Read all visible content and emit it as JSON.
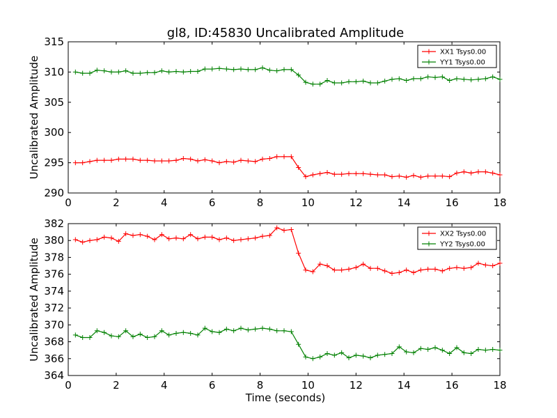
{
  "figure": {
    "title": "gl8, ID:45830 Uncalibrated Amplitude",
    "xlabel": "Time (seconds)"
  },
  "chart_data": [
    {
      "type": "line",
      "title": "gl8, ID:45830 Uncalibrated Amplitude",
      "xlabel": "",
      "ylabel": "Uncalibrated Amplitude",
      "xlim": [
        0,
        18
      ],
      "ylim": [
        290,
        315
      ],
      "xticks": [
        0,
        2,
        4,
        6,
        8,
        10,
        12,
        14,
        16,
        18
      ],
      "yticks": [
        290,
        295,
        300,
        305,
        310,
        315
      ],
      "grid": false,
      "legend_position": "top-right",
      "x": [
        0.3,
        0.6,
        0.9,
        1.2,
        1.5,
        1.8,
        2.1,
        2.4,
        2.7,
        3.0,
        3.3,
        3.6,
        3.9,
        4.2,
        4.5,
        4.8,
        5.1,
        5.4,
        5.7,
        6.0,
        6.3,
        6.6,
        6.9,
        7.2,
        7.5,
        7.8,
        8.1,
        8.4,
        8.7,
        9.0,
        9.3,
        9.6,
        9.9,
        10.2,
        10.5,
        10.8,
        11.1,
        11.4,
        11.7,
        12.0,
        12.3,
        12.6,
        12.9,
        13.2,
        13.5,
        13.8,
        14.1,
        14.4,
        14.7,
        15.0,
        15.3,
        15.6,
        15.9,
        16.2,
        16.5,
        16.8,
        17.1,
        17.4,
        17.7,
        18.0
      ],
      "series": [
        {
          "name": "XX1 Tsys0.00",
          "color": "#ff0000",
          "values": [
            295.0,
            295.0,
            295.2,
            295.4,
            295.4,
            295.4,
            295.6,
            295.6,
            295.6,
            295.4,
            295.4,
            295.3,
            295.3,
            295.3,
            295.4,
            295.7,
            295.6,
            295.3,
            295.5,
            295.3,
            295.0,
            295.2,
            295.1,
            295.4,
            295.3,
            295.2,
            295.6,
            295.7,
            296.0,
            296.0,
            296.0,
            294.2,
            292.7,
            293.0,
            293.2,
            293.4,
            293.1,
            293.1,
            293.2,
            293.2,
            293.2,
            293.1,
            293.0,
            293.0,
            292.7,
            292.8,
            292.6,
            292.9,
            292.6,
            292.8,
            292.8,
            292.8,
            292.7,
            293.3,
            293.5,
            293.3,
            293.5,
            293.5,
            293.3,
            293.0
          ]
        },
        {
          "name": "YY1 Tsys0.00",
          "color": "#008000",
          "values": [
            310.0,
            309.8,
            309.8,
            310.3,
            310.2,
            310.0,
            310.0,
            310.2,
            309.8,
            309.8,
            309.9,
            309.9,
            310.2,
            310.0,
            310.1,
            310.0,
            310.1,
            310.1,
            310.5,
            310.5,
            310.6,
            310.5,
            310.4,
            310.5,
            310.4,
            310.4,
            310.7,
            310.3,
            310.2,
            310.4,
            310.4,
            309.5,
            308.3,
            308.0,
            308.0,
            308.6,
            308.2,
            308.2,
            308.4,
            308.4,
            308.5,
            308.2,
            308.2,
            308.5,
            308.8,
            308.9,
            308.6,
            308.9,
            308.9,
            309.2,
            309.1,
            309.2,
            308.6,
            308.9,
            308.8,
            308.7,
            308.8,
            308.9,
            309.2,
            308.8
          ]
        }
      ]
    },
    {
      "type": "line",
      "title": "",
      "xlabel": "Time (seconds)",
      "ylabel": "Uncalibrated Amplitude",
      "xlim": [
        0,
        18
      ],
      "ylim": [
        364,
        382
      ],
      "xticks": [
        0,
        2,
        4,
        6,
        8,
        10,
        12,
        14,
        16,
        18
      ],
      "yticks": [
        364,
        366,
        368,
        370,
        372,
        374,
        376,
        378,
        380,
        382
      ],
      "grid": false,
      "legend_position": "top-right",
      "x": [
        0.3,
        0.6,
        0.9,
        1.2,
        1.5,
        1.8,
        2.1,
        2.4,
        2.7,
        3.0,
        3.3,
        3.6,
        3.9,
        4.2,
        4.5,
        4.8,
        5.1,
        5.4,
        5.7,
        6.0,
        6.3,
        6.6,
        6.9,
        7.2,
        7.5,
        7.8,
        8.1,
        8.4,
        8.7,
        9.0,
        9.3,
        9.6,
        9.9,
        10.2,
        10.5,
        10.8,
        11.1,
        11.4,
        11.7,
        12.0,
        12.3,
        12.6,
        12.9,
        13.2,
        13.5,
        13.8,
        14.1,
        14.4,
        14.7,
        15.0,
        15.3,
        15.6,
        15.9,
        16.2,
        16.5,
        16.8,
        17.1,
        17.4,
        17.7,
        18.0
      ],
      "series": [
        {
          "name": "XX2 Tsys0.00",
          "color": "#ff0000",
          "values": [
            380.1,
            379.8,
            380.0,
            380.1,
            380.4,
            380.3,
            379.9,
            380.8,
            380.6,
            380.7,
            380.5,
            380.1,
            380.7,
            380.2,
            380.3,
            380.2,
            380.7,
            380.2,
            380.4,
            380.4,
            380.1,
            380.3,
            380.0,
            380.1,
            380.2,
            380.3,
            380.5,
            380.6,
            381.5,
            381.2,
            381.3,
            378.5,
            376.5,
            376.3,
            377.2,
            377.0,
            376.5,
            376.5,
            376.6,
            376.8,
            377.2,
            376.7,
            376.7,
            376.4,
            376.1,
            376.2,
            376.5,
            376.2,
            376.5,
            376.6,
            376.6,
            376.4,
            376.7,
            376.8,
            376.7,
            376.8,
            377.3,
            377.1,
            377.0,
            377.3
          ]
        },
        {
          "name": "YY2 Tsys0.00",
          "color": "#008000",
          "values": [
            368.8,
            368.5,
            368.5,
            369.3,
            369.1,
            368.7,
            368.6,
            369.3,
            368.6,
            368.9,
            368.5,
            368.6,
            369.3,
            368.8,
            369.0,
            369.1,
            369.0,
            368.8,
            369.6,
            369.2,
            369.1,
            369.5,
            369.3,
            369.6,
            369.4,
            369.5,
            369.6,
            369.5,
            369.3,
            369.3,
            369.2,
            367.7,
            366.2,
            366.0,
            366.2,
            366.6,
            366.4,
            366.7,
            366.1,
            366.4,
            366.3,
            366.1,
            366.4,
            366.5,
            366.6,
            367.4,
            366.8,
            366.7,
            367.2,
            367.1,
            367.3,
            367.0,
            366.6,
            367.3,
            366.7,
            366.6,
            367.1,
            367.0,
            367.1,
            367.0
          ]
        }
      ]
    }
  ]
}
